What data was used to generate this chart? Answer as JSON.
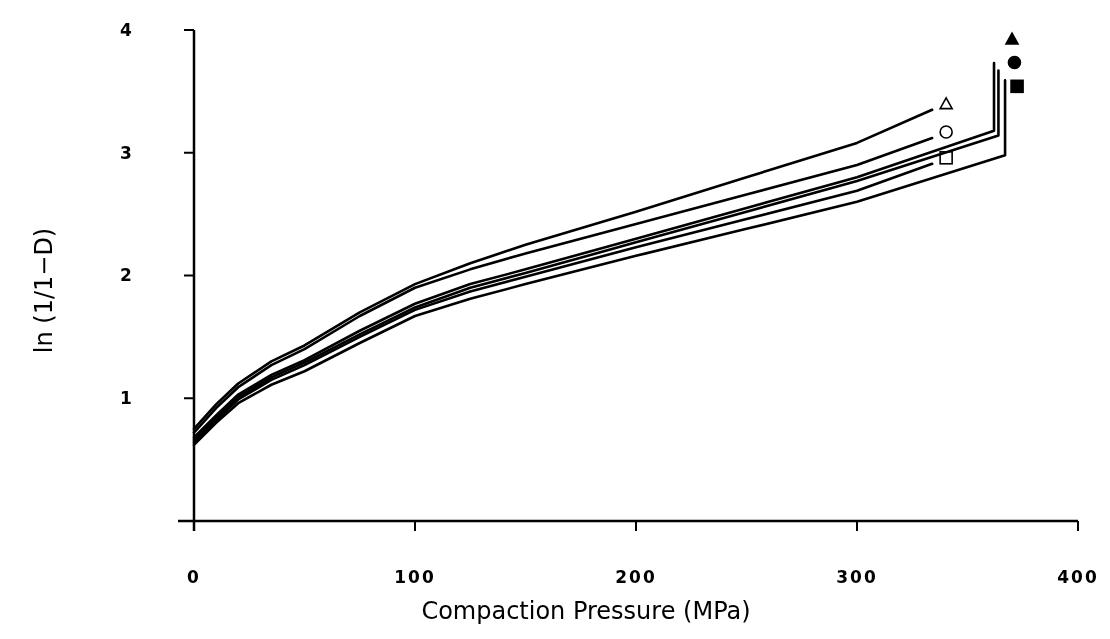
{
  "chart_data": {
    "type": "line",
    "xlabel": "Compaction Pressure (MPa)",
    "ylabel": "ln (1/1−D)",
    "xlim": [
      0,
      400
    ],
    "ylim": [
      0,
      4
    ],
    "xticks": [
      0,
      100,
      200,
      300,
      400
    ],
    "yticks": [
      1,
      2,
      3,
      4
    ],
    "line_style": "solid",
    "series": [
      {
        "color": "#000000",
        "x": [
          0,
          10,
          20,
          35,
          50,
          75,
          100,
          125,
          150,
          200,
          250,
          300,
          334
        ],
        "values": [
          0.75,
          0.95,
          1.12,
          1.3,
          1.43,
          1.7,
          1.93,
          2.1,
          2.25,
          2.52,
          2.8,
          3.08,
          3.35
        ]
      },
      {
        "color": "#000000",
        "x": [
          0,
          10,
          20,
          35,
          50,
          75,
          100,
          125,
          150,
          200,
          250,
          300,
          334
        ],
        "values": [
          0.72,
          0.92,
          1.09,
          1.27,
          1.4,
          1.67,
          1.9,
          2.05,
          2.18,
          2.42,
          2.66,
          2.9,
          3.12
        ]
      },
      {
        "color": "#000000",
        "x": [
          0,
          10,
          20,
          35,
          50,
          75,
          100,
          125,
          150,
          200,
          250,
          300,
          334
        ],
        "values": [
          0.64,
          0.82,
          0.99,
          1.15,
          1.27,
          1.5,
          1.72,
          1.87,
          1.99,
          2.23,
          2.46,
          2.69,
          2.91
        ]
      },
      {
        "color": "#000000",
        "x": [
          0,
          10,
          20,
          35,
          50,
          75,
          100,
          125,
          150,
          200,
          250,
          300,
          362,
          362
        ],
        "values": [
          0.68,
          0.86,
          1.03,
          1.19,
          1.31,
          1.55,
          1.77,
          1.93,
          2.05,
          2.3,
          2.55,
          2.8,
          3.18,
          3.73
        ]
      },
      {
        "color": "#000000",
        "x": [
          0,
          10,
          20,
          35,
          50,
          75,
          100,
          125,
          150,
          200,
          250,
          300,
          364,
          364
        ],
        "values": [
          0.66,
          0.84,
          1.01,
          1.17,
          1.29,
          1.52,
          1.74,
          1.9,
          2.02,
          2.27,
          2.52,
          2.77,
          3.14,
          3.67
        ]
      },
      {
        "color": "#000000",
        "x": [
          0,
          10,
          20,
          35,
          50,
          75,
          100,
          125,
          150,
          200,
          250,
          300,
          367,
          367
        ],
        "values": [
          0.62,
          0.8,
          0.96,
          1.11,
          1.22,
          1.45,
          1.67,
          1.81,
          1.93,
          2.16,
          2.38,
          2.6,
          2.98,
          3.59
        ]
      }
    ]
  }
}
